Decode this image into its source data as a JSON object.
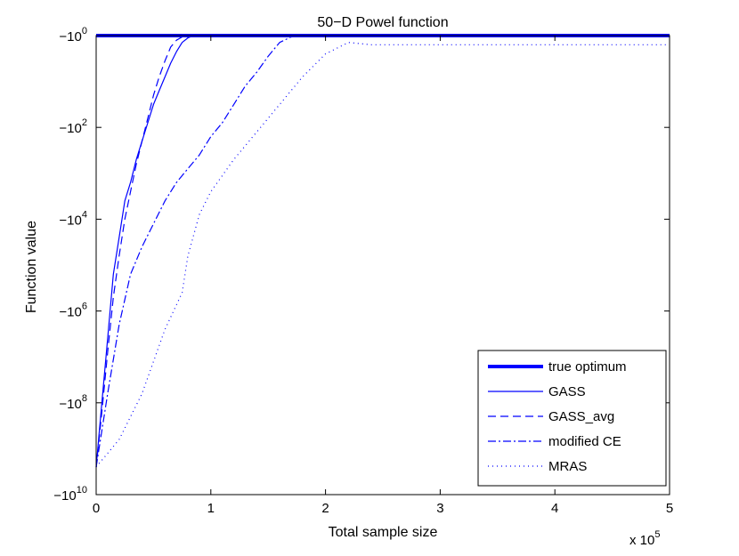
{
  "chart_data": {
    "type": "line",
    "title": "50−D Powel function",
    "xlabel": "Total sample size",
    "ylabel": "Function value",
    "x_multiplier_label": "x 10",
    "x_multiplier_exponent": "5",
    "x_scale": "symlog-negative",
    "xlim": [
      0,
      5
    ],
    "ylim_log10_magnitude": [
      10,
      0
    ],
    "x_ticks": [
      0,
      1,
      2,
      3,
      4,
      5
    ],
    "x_tick_labels": [
      "0",
      "1",
      "2",
      "3",
      "4",
      "5"
    ],
    "y_ticks_log10_magnitude": [
      0,
      2,
      4,
      6,
      8,
      10
    ],
    "y_tick_base": "−10",
    "y_tick_exponents": [
      "0",
      "2",
      "4",
      "6",
      "8",
      "10"
    ],
    "grid": false,
    "legend_position": "bottom-right",
    "colors": {
      "series": "#0000ff",
      "axis": "#000000"
    },
    "series": [
      {
        "name": "true optimum",
        "style": "thick-solid",
        "x": [
          0,
          5
        ],
        "log10_magnitude": [
          0,
          0
        ]
      },
      {
        "name": "GASS",
        "style": "solid",
        "x": [
          0,
          0.05,
          0.1,
          0.15,
          0.2,
          0.25,
          0.3,
          0.35,
          0.4,
          0.45,
          0.5,
          0.55,
          0.6,
          0.65,
          0.7,
          0.75,
          0.8,
          0.85,
          5
        ],
        "log10_magnitude": [
          9.4,
          8.0,
          6.6,
          5.2,
          4.4,
          3.6,
          3.2,
          2.7,
          2.3,
          1.9,
          1.5,
          1.2,
          0.9,
          0.6,
          0.35,
          0.15,
          0.05,
          0.0,
          0.0
        ]
      },
      {
        "name": "GASS_avg",
        "style": "dashed",
        "x": [
          0,
          0.05,
          0.1,
          0.15,
          0.2,
          0.25,
          0.3,
          0.35,
          0.4,
          0.45,
          0.5,
          0.55,
          0.6,
          0.65,
          0.7,
          0.75,
          0.8,
          5
        ],
        "log10_magnitude": [
          9.4,
          8.2,
          6.9,
          5.7,
          4.8,
          4.0,
          3.4,
          2.8,
          2.3,
          1.8,
          1.3,
          0.9,
          0.55,
          0.25,
          0.1,
          0.03,
          0.0,
          0.0
        ]
      },
      {
        "name": "modified CE",
        "style": "dash-dot",
        "x": [
          0,
          0.1,
          0.2,
          0.3,
          0.4,
          0.5,
          0.6,
          0.7,
          0.8,
          0.9,
          1.0,
          1.1,
          1.2,
          1.3,
          1.4,
          1.5,
          1.6,
          1.7,
          1.8,
          5
        ],
        "log10_magnitude": [
          9.4,
          7.8,
          6.3,
          5.2,
          4.6,
          4.1,
          3.6,
          3.2,
          2.9,
          2.6,
          2.2,
          1.9,
          1.5,
          1.1,
          0.8,
          0.45,
          0.15,
          0.03,
          0.0,
          0.0
        ]
      },
      {
        "name": "MRAS",
        "style": "dotted",
        "x": [
          0,
          0.2,
          0.4,
          0.6,
          0.75,
          0.8,
          0.9,
          1.0,
          1.2,
          1.4,
          1.6,
          1.8,
          2.0,
          2.2,
          2.4,
          2.6,
          5
        ],
        "log10_magnitude": [
          9.4,
          8.8,
          7.8,
          6.4,
          5.6,
          4.8,
          3.9,
          3.4,
          2.7,
          2.1,
          1.5,
          0.9,
          0.4,
          0.15,
          0.2,
          0.2,
          0.2
        ]
      }
    ]
  }
}
